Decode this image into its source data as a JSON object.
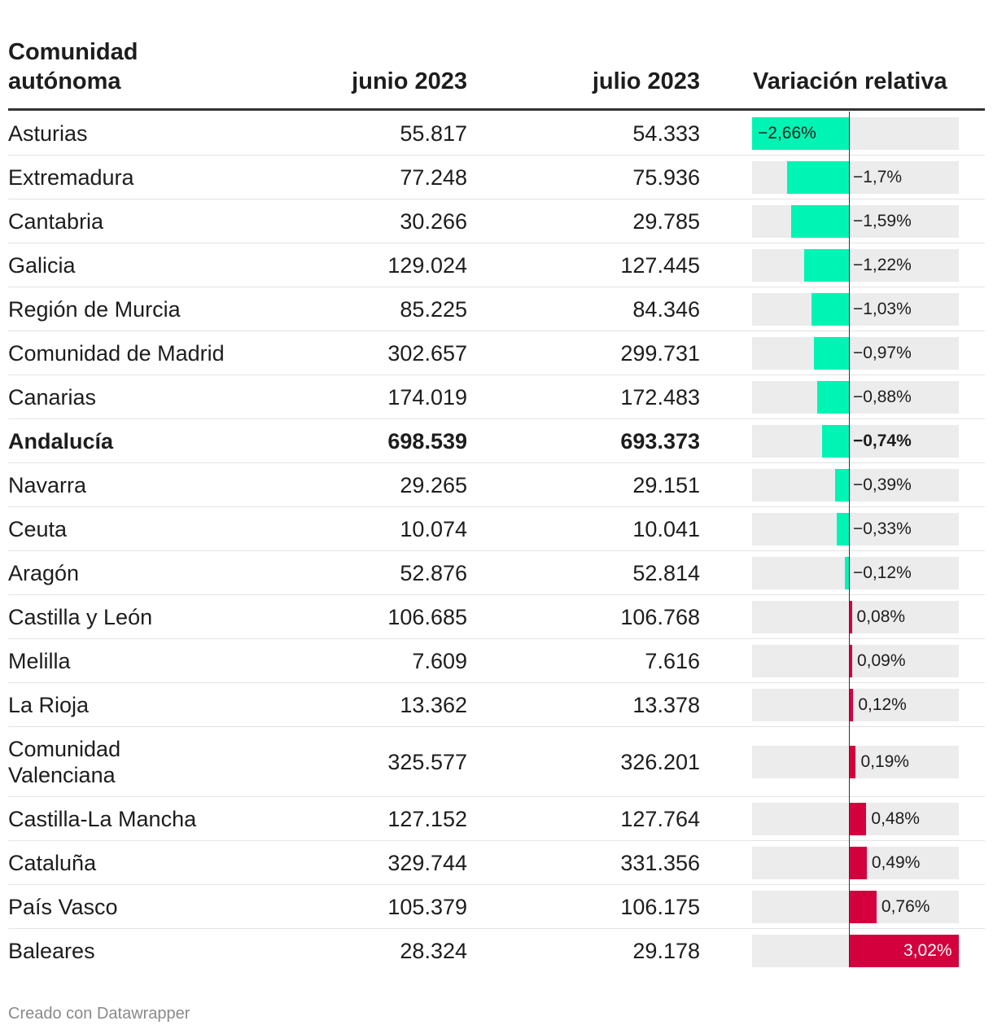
{
  "columns": {
    "name": "Comunidad autónoma",
    "junio": "junio 2023",
    "julio": "julio 2023",
    "variation": "Variación relativa"
  },
  "footer": "Creado con Datawrapper",
  "colors": {
    "negative": "#00f5b4",
    "positive": "#d3003d",
    "track": "#ececec"
  },
  "chart_data": {
    "type": "table",
    "title": "",
    "bar_column": "Variación relativa",
    "bar_range": [
      -2.66,
      3.02
    ],
    "rows": [
      {
        "name": "Asturias",
        "junio": "55.817",
        "julio": "54.333",
        "variation": -2.66,
        "label": "−2,66%",
        "bold": false
      },
      {
        "name": "Extremadura",
        "junio": "77.248",
        "julio": "75.936",
        "variation": -1.7,
        "label": "−1,7%",
        "bold": false
      },
      {
        "name": "Cantabria",
        "junio": "30.266",
        "julio": "29.785",
        "variation": -1.59,
        "label": "−1,59%",
        "bold": false
      },
      {
        "name": "Galicia",
        "junio": "129.024",
        "julio": "127.445",
        "variation": -1.22,
        "label": "−1,22%",
        "bold": false
      },
      {
        "name": "Región de Murcia",
        "junio": "85.225",
        "julio": "84.346",
        "variation": -1.03,
        "label": "−1,03%",
        "bold": false
      },
      {
        "name": "Comunidad de Madrid",
        "junio": "302.657",
        "julio": "299.731",
        "variation": -0.97,
        "label": "−0,97%",
        "bold": false
      },
      {
        "name": "Canarias",
        "junio": "174.019",
        "julio": "172.483",
        "variation": -0.88,
        "label": "−0,88%",
        "bold": false
      },
      {
        "name": "Andalucía",
        "junio": "698.539",
        "julio": "693.373",
        "variation": -0.74,
        "label": "−0,74%",
        "bold": true
      },
      {
        "name": "Navarra",
        "junio": "29.265",
        "julio": "29.151",
        "variation": -0.39,
        "label": "−0,39%",
        "bold": false
      },
      {
        "name": "Ceuta",
        "junio": "10.074",
        "julio": "10.041",
        "variation": -0.33,
        "label": "−0,33%",
        "bold": false
      },
      {
        "name": "Aragón",
        "junio": "52.876",
        "julio": "52.814",
        "variation": -0.12,
        "label": "−0,12%",
        "bold": false
      },
      {
        "name": "Castilla y León",
        "junio": "106.685",
        "julio": "106.768",
        "variation": 0.08,
        "label": "0,08%",
        "bold": false
      },
      {
        "name": "Melilla",
        "junio": "7.609",
        "julio": "7.616",
        "variation": 0.09,
        "label": "0,09%",
        "bold": false
      },
      {
        "name": "La Rioja",
        "junio": "13.362",
        "julio": "13.378",
        "variation": 0.12,
        "label": "0,12%",
        "bold": false
      },
      {
        "name": "Comunidad Valenciana",
        "junio": "325.577",
        "julio": "326.201",
        "variation": 0.19,
        "label": "0,19%",
        "bold": false
      },
      {
        "name": "Castilla-La Mancha",
        "junio": "127.152",
        "julio": "127.764",
        "variation": 0.48,
        "label": "0,48%",
        "bold": false
      },
      {
        "name": "Cataluña",
        "junio": "329.744",
        "julio": "331.356",
        "variation": 0.49,
        "label": "0,49%",
        "bold": false
      },
      {
        "name": "País Vasco",
        "junio": "105.379",
        "julio": "106.175",
        "variation": 0.76,
        "label": "0,76%",
        "bold": false
      },
      {
        "name": "Baleares",
        "junio": "28.324",
        "julio": "29.178",
        "variation": 3.02,
        "label": "3,02%",
        "bold": false
      }
    ]
  }
}
